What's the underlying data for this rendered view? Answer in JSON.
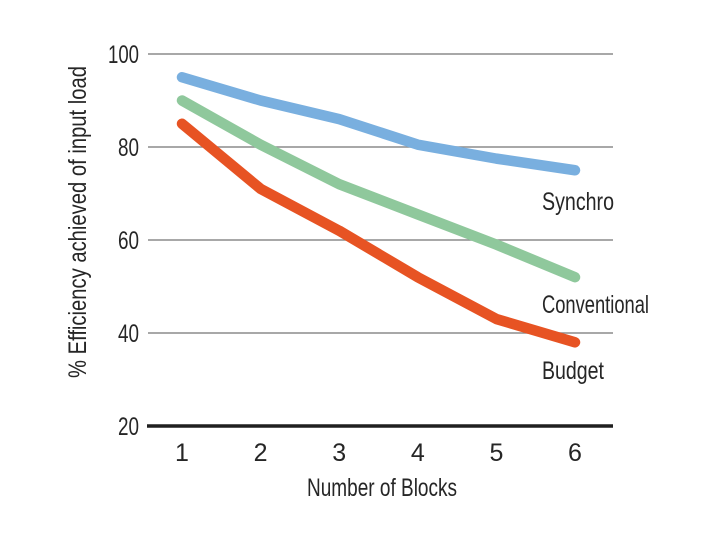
{
  "chart_data": {
    "type": "line",
    "x": [
      1,
      2,
      3,
      4,
      5,
      6
    ],
    "series": [
      {
        "name": "Synchro",
        "color": "#79AFDF",
        "values": [
          95,
          90,
          86,
          80.5,
          77.5,
          75
        ]
      },
      {
        "name": "Conventional",
        "color": "#8FC89C",
        "values": [
          90,
          80.5,
          72,
          65.5,
          59,
          52
        ]
      },
      {
        "name": "Budget",
        "color": "#E75323",
        "values": [
          85,
          71,
          62,
          52,
          43,
          38
        ]
      }
    ],
    "title": "",
    "xlabel": "Number of Blocks",
    "ylabel": "% Efficiency achieved of input load",
    "xticks": [
      "1",
      "2",
      "3",
      "4",
      "5",
      "6"
    ],
    "yticks": [
      100,
      80,
      60,
      40,
      20
    ],
    "ylim": [
      20,
      100
    ],
    "xlim": [
      1,
      6
    ],
    "grid": "horizontal-only",
    "legend": "inline-labels-right-of-lines",
    "colors": {
      "gridline": "#8C8C8C",
      "axis": "#1F1F1F",
      "text": "#262626",
      "background": "#FFFFFF"
    }
  }
}
